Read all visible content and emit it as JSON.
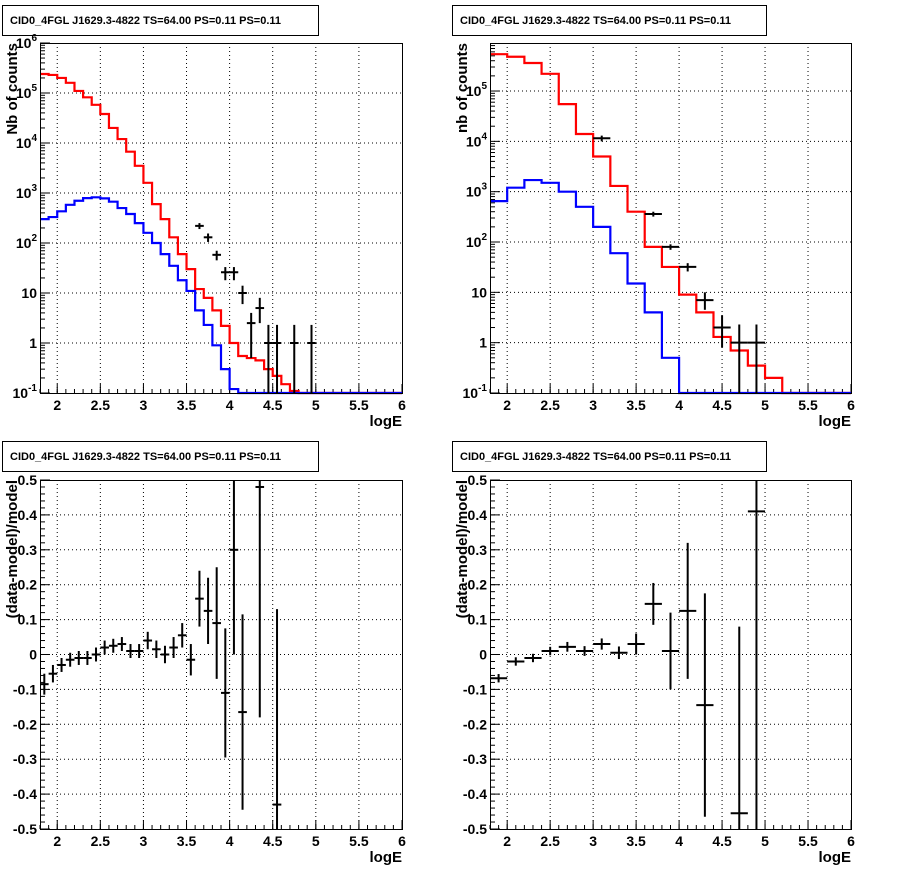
{
  "colors": {
    "data": "#000000",
    "total_model": "#ff0000",
    "source_model": "#0000ff",
    "grid": "#000000",
    "frame": "#000000"
  },
  "chart_data": [
    {
      "type": "line",
      "title": "CID0_4FGL J1629.3-4822 TS=64.00 PS=0.11 PS=0.11",
      "xlabel": "logE",
      "ylabel": "Nb of counts",
      "xlim": [
        1.8,
        6.0
      ],
      "ylim": [
        0.1,
        1000000
      ],
      "yscale": "log",
      "grid": true,
      "x_ticks": [
        "2",
        "2.5",
        "3",
        "3.5",
        "4",
        "4.5",
        "5",
        "5.5",
        "6"
      ],
      "y_ticks": [
        "10^-1",
        "1",
        "10",
        "10^2",
        "10^3",
        "10^4",
        "10^5",
        "10^6"
      ],
      "bin_edges": [
        1.8,
        1.9,
        2.0,
        2.1,
        2.2,
        2.3,
        2.4,
        2.5,
        2.6,
        2.7,
        2.8,
        2.9,
        3.0,
        3.1,
        3.2,
        3.3,
        3.4,
        3.5,
        3.6,
        3.7,
        3.8,
        3.9,
        4.0,
        4.1,
        4.2,
        4.3,
        4.4,
        4.5,
        4.6,
        4.7,
        4.8,
        4.9,
        5.0,
        5.1,
        5.2,
        5.3,
        5.4,
        5.5,
        5.6,
        5.7,
        5.8,
        5.9,
        6.0
      ],
      "series": [
        {
          "role": "total_model",
          "values": [
            240000,
            230000,
            200000,
            160000,
            110000,
            82000,
            58000,
            38000,
            20000,
            12000,
            6700,
            3500,
            1600,
            600,
            300,
            130,
            60,
            30,
            12,
            8,
            4.5,
            2.2,
            1.0,
            0.55,
            0.5,
            0.45,
            0.3,
            0.22,
            0.15,
            0.11,
            0.1
          ]
        },
        {
          "role": "source_model",
          "values": [
            300,
            330,
            430,
            580,
            700,
            790,
            820,
            780,
            670,
            500,
            380,
            250,
            160,
            100,
            60,
            35,
            18,
            11,
            4.5,
            2.3,
            0.9,
            0.3,
            0.12,
            0.1
          ]
        },
        {
          "role": "data",
          "points": [
            {
              "x": 3.65,
              "y": 220,
              "err_lo": 190,
              "err_hi": 250
            },
            {
              "x": 3.75,
              "y": 130,
              "err_lo": 105,
              "err_hi": 155
            },
            {
              "x": 3.85,
              "y": 58,
              "err_lo": 45,
              "err_hi": 70
            },
            {
              "x": 3.95,
              "y": 26,
              "err_lo": 18,
              "err_hi": 33
            },
            {
              "x": 4.05,
              "y": 26,
              "err_lo": 18,
              "err_hi": 33
            },
            {
              "x": 4.15,
              "y": 10,
              "err_lo": 6,
              "err_hi": 14
            },
            {
              "x": 4.25,
              "y": 2.5,
              "err_lo": 0.5,
              "err_hi": 4
            },
            {
              "x": 4.35,
              "y": 5,
              "err_lo": 2.5,
              "err_hi": 8
            },
            {
              "x": 4.45,
              "y": 1,
              "err_lo": 0.1,
              "err_hi": 2.3
            },
            {
              "x": 4.55,
              "y": 1,
              "err_lo": 0.1,
              "err_hi": 2.3
            },
            {
              "x": 4.75,
              "y": 1,
              "err_lo": 0.1,
              "err_hi": 2.3
            },
            {
              "x": 4.95,
              "y": 1,
              "err_lo": 0.1,
              "err_hi": 2.3
            }
          ]
        }
      ]
    },
    {
      "type": "line",
      "title": "CID0_4FGL J1629.3-4822 TS=64.00 PS=0.11 PS=0.11",
      "xlabel": "logE",
      "ylabel": "nb of counts",
      "xlim": [
        1.8,
        6.0
      ],
      "ylim": [
        0.1,
        900000
      ],
      "yscale": "log",
      "grid": true,
      "x_ticks": [
        "2",
        "2.5",
        "3",
        "3.5",
        "4",
        "4.5",
        "5",
        "5.5",
        "6"
      ],
      "y_ticks": [
        "10^-1",
        "1",
        "10",
        "10^2",
        "10^3",
        "10^4",
        "10^5"
      ],
      "bin_edges": [
        1.8,
        2.0,
        2.2,
        2.4,
        2.6,
        2.8,
        3.0,
        3.2,
        3.4,
        3.6,
        3.8,
        4.0,
        4.2,
        4.4,
        4.6,
        4.8,
        5.0,
        5.2,
        5.4,
        5.6,
        5.8,
        6.0
      ],
      "series": [
        {
          "role": "total_model",
          "values": [
            540000,
            480000,
            360000,
            220000,
            55000,
            14000,
            5000,
            1300,
            400,
            80,
            32,
            9,
            4,
            1.3,
            0.7,
            0.35,
            0.2,
            0.1,
            0.1,
            0.1,
            0.1
          ]
        },
        {
          "role": "source_model",
          "values": [
            650,
            1200,
            1700,
            1500,
            1000,
            500,
            200,
            60,
            15,
            4,
            0.5,
            0.1,
            0.1
          ]
        },
        {
          "role": "data",
          "points": [
            {
              "x": 3.1,
              "y": 11500,
              "err_lo": 10000,
              "err_hi": 13000
            },
            {
              "x": 3.7,
              "y": 360,
              "err_lo": 320,
              "err_hi": 400
            },
            {
              "x": 3.9,
              "y": 80,
              "err_lo": 70,
              "err_hi": 90
            },
            {
              "x": 4.1,
              "y": 32,
              "err_lo": 26,
              "err_hi": 38
            },
            {
              "x": 4.3,
              "y": 7,
              "err_lo": 4.5,
              "err_hi": 10
            },
            {
              "x": 4.5,
              "y": 2,
              "err_lo": 0.8,
              "err_hi": 3.5
            },
            {
              "x": 4.7,
              "y": 1,
              "err_lo": 0.1,
              "err_hi": 2.3
            },
            {
              "x": 4.9,
              "y": 1,
              "err_lo": 0.1,
              "err_hi": 2.3
            }
          ]
        }
      ]
    },
    {
      "type": "scatter",
      "title": "CID0_4FGL J1629.3-4822 TS=64.00 PS=0.11 PS=0.11",
      "xlabel": "logE",
      "ylabel": "(data-model)/model",
      "xlim": [
        1.8,
        6.0
      ],
      "ylim": [
        -0.5,
        0.5
      ],
      "grid": true,
      "x_ticks": [
        "2",
        "2.5",
        "3",
        "3.5",
        "4",
        "4.5",
        "5",
        "5.5",
        "6"
      ],
      "y_ticks": [
        "-0.5",
        "-0.4",
        "-0.3",
        "-0.2",
        "-0.1",
        "0",
        "0.1",
        "0.2",
        "0.3",
        "0.4",
        "0.5"
      ],
      "series": [
        {
          "role": "data",
          "points": [
            {
              "x": 1.85,
              "y": -0.085,
              "err": 0.03,
              "xerr": 0.05
            },
            {
              "x": 1.95,
              "y": -0.055,
              "err": 0.025,
              "xerr": 0.05
            },
            {
              "x": 2.05,
              "y": -0.03,
              "err": 0.02,
              "xerr": 0.05
            },
            {
              "x": 2.15,
              "y": -0.015,
              "err": 0.02,
              "xerr": 0.05
            },
            {
              "x": 2.25,
              "y": -0.01,
              "err": 0.02,
              "xerr": 0.05
            },
            {
              "x": 2.35,
              "y": -0.01,
              "err": 0.02,
              "xerr": 0.05
            },
            {
              "x": 2.45,
              "y": 0.0,
              "err": 0.02,
              "xerr": 0.05
            },
            {
              "x": 2.55,
              "y": 0.02,
              "err": 0.02,
              "xerr": 0.05
            },
            {
              "x": 2.65,
              "y": 0.025,
              "err": 0.02,
              "xerr": 0.05
            },
            {
              "x": 2.75,
              "y": 0.03,
              "err": 0.02,
              "xerr": 0.05
            },
            {
              "x": 2.85,
              "y": 0.01,
              "err": 0.02,
              "xerr": 0.05
            },
            {
              "x": 2.95,
              "y": 0.01,
              "err": 0.02,
              "xerr": 0.05
            },
            {
              "x": 3.05,
              "y": 0.04,
              "err": 0.025,
              "xerr": 0.05
            },
            {
              "x": 3.15,
              "y": 0.015,
              "err": 0.025,
              "xerr": 0.05
            },
            {
              "x": 3.25,
              "y": 0.0,
              "err": 0.025,
              "xerr": 0.05
            },
            {
              "x": 3.35,
              "y": 0.02,
              "err": 0.03,
              "xerr": 0.05
            },
            {
              "x": 3.45,
              "y": 0.055,
              "err": 0.035,
              "xerr": 0.05
            },
            {
              "x": 3.55,
              "y": -0.015,
              "err": 0.045,
              "xerr": 0.05
            },
            {
              "x": 3.65,
              "y": 0.16,
              "err": 0.08,
              "xerr": 0.05
            },
            {
              "x": 3.75,
              "y": 0.125,
              "err": 0.095,
              "xerr": 0.05
            },
            {
              "x": 3.85,
              "y": 0.09,
              "err": 0.16,
              "xerr": 0.05
            },
            {
              "x": 3.95,
              "y": -0.11,
              "err": 0.185,
              "xerr": 0.05
            },
            {
              "x": 4.05,
              "y": 0.3,
              "err": 0.3,
              "xerr": 0.05
            },
            {
              "x": 4.15,
              "y": -0.165,
              "err": 0.28,
              "xerr": 0.05
            },
            {
              "x": 4.35,
              "y": 0.48,
              "err": 0.66,
              "xerr": 0.05
            },
            {
              "x": 4.55,
              "y": -0.43,
              "err": 0.56,
              "xerr": 0.05
            }
          ]
        }
      ]
    },
    {
      "type": "scatter",
      "title": "CID0_4FGL J1629.3-4822 TS=64.00 PS=0.11 PS=0.11",
      "xlabel": "logE",
      "ylabel": "(data-model)/model",
      "xlim": [
        1.8,
        6.0
      ],
      "ylim": [
        -0.5,
        0.5
      ],
      "grid": true,
      "x_ticks": [
        "2",
        "2.5",
        "3",
        "3.5",
        "4",
        "4.5",
        "5",
        "5.5",
        "6"
      ],
      "y_ticks": [
        "-0.5",
        "-0.4",
        "-0.3",
        "-0.2",
        "-0.1",
        "0",
        "0.1",
        "0.2",
        "0.3",
        "0.4",
        "0.5"
      ],
      "series": [
        {
          "role": "data",
          "points": [
            {
              "x": 1.9,
              "y": -0.068,
              "err": 0.012,
              "xerr": 0.1
            },
            {
              "x": 2.1,
              "y": -0.02,
              "err": 0.012,
              "xerr": 0.1
            },
            {
              "x": 2.3,
              "y": -0.01,
              "err": 0.012,
              "xerr": 0.1
            },
            {
              "x": 2.5,
              "y": 0.01,
              "err": 0.012,
              "xerr": 0.1
            },
            {
              "x": 2.7,
              "y": 0.022,
              "err": 0.014,
              "xerr": 0.1
            },
            {
              "x": 2.9,
              "y": 0.01,
              "err": 0.014,
              "xerr": 0.1
            },
            {
              "x": 3.1,
              "y": 0.03,
              "err": 0.016,
              "xerr": 0.1
            },
            {
              "x": 3.3,
              "y": 0.005,
              "err": 0.018,
              "xerr": 0.1
            },
            {
              "x": 3.5,
              "y": 0.03,
              "err": 0.03,
              "xerr": 0.1
            },
            {
              "x": 3.7,
              "y": 0.145,
              "err": 0.06,
              "xerr": 0.1
            },
            {
              "x": 3.9,
              "y": 0.01,
              "err": 0.11,
              "xerr": 0.1
            },
            {
              "x": 4.1,
              "y": 0.125,
              "err": 0.195,
              "xerr": 0.1
            },
            {
              "x": 4.3,
              "y": -0.145,
              "err": 0.32,
              "xerr": 0.1
            },
            {
              "x": 4.7,
              "y": -0.455,
              "err": 0.535,
              "xerr": 0.1
            },
            {
              "x": 4.9,
              "y": 0.41,
              "err": 0.95,
              "xerr": 0.1
            }
          ]
        }
      ]
    }
  ]
}
